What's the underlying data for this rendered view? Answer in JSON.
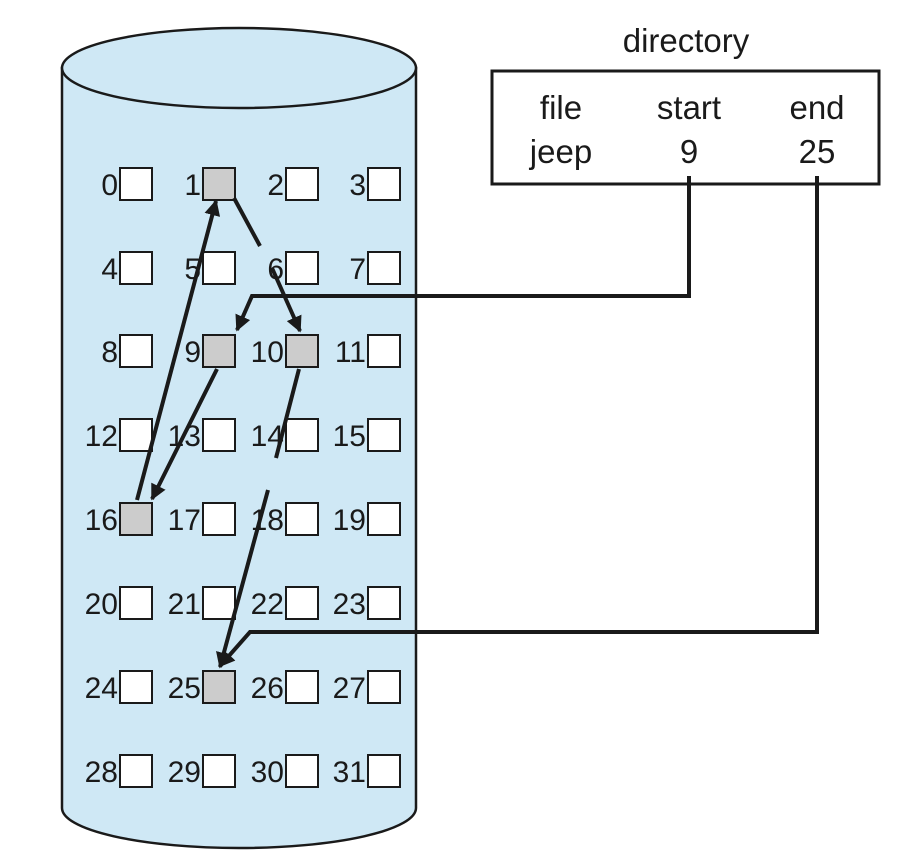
{
  "colors": {
    "cylinder_fill": "#cfe8f5",
    "outline": "#1a1a1a",
    "free_block": "#ffffff",
    "used_block": "#cccccc"
  },
  "directory": {
    "title": "directory",
    "headers": {
      "file": "file",
      "start": "start",
      "end": "end"
    },
    "entry": {
      "file": "jeep",
      "start": "9",
      "end": "25"
    }
  },
  "disk": {
    "blocks": [
      {
        "label": "0",
        "used": false
      },
      {
        "label": "1",
        "used": true
      },
      {
        "label": "2",
        "used": false
      },
      {
        "label": "3",
        "used": false
      },
      {
        "label": "4",
        "used": false
      },
      {
        "label": "5",
        "used": false
      },
      {
        "label": "6",
        "used": false
      },
      {
        "label": "7",
        "used": false
      },
      {
        "label": "8",
        "used": false
      },
      {
        "label": "9",
        "used": true
      },
      {
        "label": "10",
        "used": true
      },
      {
        "label": "11",
        "used": false
      },
      {
        "label": "12",
        "used": false
      },
      {
        "label": "13",
        "used": false
      },
      {
        "label": "14",
        "used": false
      },
      {
        "label": "15",
        "used": false
      },
      {
        "label": "16",
        "used": true
      },
      {
        "label": "17",
        "used": false
      },
      {
        "label": "18",
        "used": false
      },
      {
        "label": "19",
        "used": false
      },
      {
        "label": "20",
        "used": false
      },
      {
        "label": "21",
        "used": false
      },
      {
        "label": "22",
        "used": false
      },
      {
        "label": "23",
        "used": false
      },
      {
        "label": "24",
        "used": false
      },
      {
        "label": "25",
        "used": true
      },
      {
        "label": "26",
        "used": false
      },
      {
        "label": "27",
        "used": false
      },
      {
        "label": "28",
        "used": false
      },
      {
        "label": "29",
        "used": false
      },
      {
        "label": "30",
        "used": false
      },
      {
        "label": "31",
        "used": false
      }
    ],
    "chain": [
      9,
      16,
      1,
      10,
      25
    ]
  }
}
